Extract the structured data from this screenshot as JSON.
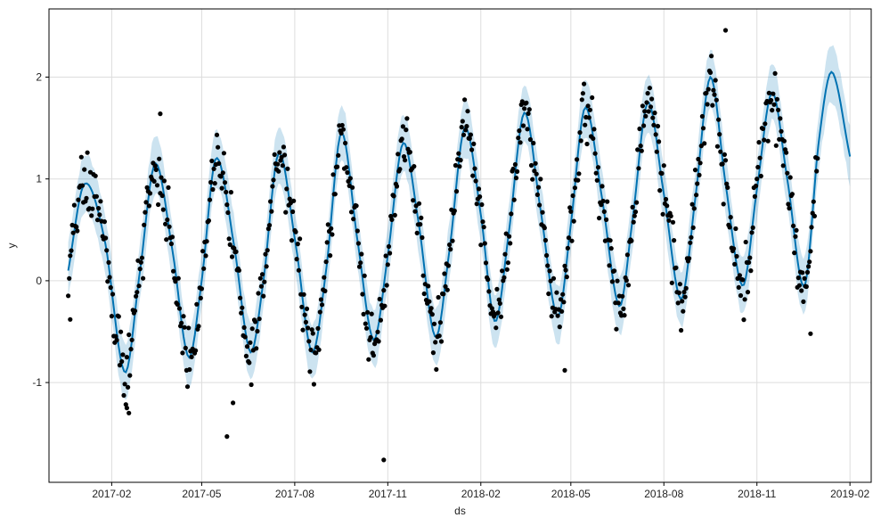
{
  "chart_data": {
    "type": "line",
    "title": "",
    "xlabel": "ds",
    "ylabel": "y",
    "x_tick_labels": [
      "2017-02",
      "2017-05",
      "2017-08",
      "2017-11",
      "2018-02",
      "2018-05",
      "2018-08",
      "2018-11",
      "2019-02"
    ],
    "x_tick_dates": [
      "2017-02-01",
      "2017-05-01",
      "2017-08-01",
      "2017-11-01",
      "2018-02-01",
      "2018-05-01",
      "2018-08-01",
      "2018-11-01",
      "2019-02-01"
    ],
    "y_ticks": [
      -1,
      0,
      1,
      2
    ],
    "xlim": [
      "2016-12-01",
      "2019-02-22"
    ],
    "ylim": [
      -1.98,
      2.67
    ],
    "grid": true,
    "colors": {
      "forecast_line": "#0072B2",
      "uncertainty_band": "#0072B2",
      "observed_points": "#000000",
      "grid": "#dddddd"
    },
    "series": [
      {
        "kind": "forecast",
        "x": [
          "2016-12-20",
          "2017-01-05",
          "2017-01-25",
          "2017-02-14",
          "2017-03-01",
          "2017-03-16",
          "2017-04-02",
          "2017-04-18",
          "2017-05-01",
          "2017-05-15",
          "2017-06-02",
          "2017-06-18",
          "2017-07-01",
          "2017-07-16",
          "2017-08-02",
          "2017-08-18",
          "2017-09-01",
          "2017-09-16",
          "2017-10-02",
          "2017-10-18",
          "2017-11-01",
          "2017-11-16",
          "2017-12-01",
          "2017-12-18",
          "2018-01-01",
          "2018-01-16",
          "2018-02-01",
          "2018-02-15",
          "2018-03-01",
          "2018-03-16",
          "2018-04-01",
          "2018-04-18",
          "2018-05-01",
          "2018-05-15",
          "2018-06-01",
          "2018-06-18",
          "2018-07-01",
          "2018-07-16",
          "2018-08-01",
          "2018-08-18",
          "2018-09-01",
          "2018-09-16",
          "2018-10-01",
          "2018-10-18",
          "2018-11-01",
          "2018-11-16",
          "2018-12-01",
          "2018-12-18",
          "2019-01-01",
          "2019-01-14",
          "2019-02-01"
        ],
        "y": [
          0.1,
          0.95,
          0.4,
          -0.9,
          0.1,
          1.15,
          0.3,
          -0.75,
          0.0,
          1.2,
          0.35,
          -0.7,
          0.0,
          1.25,
          0.35,
          -0.7,
          0.1,
          1.45,
          0.4,
          -0.58,
          0.25,
          1.35,
          0.6,
          -0.55,
          0.3,
          1.5,
          0.65,
          -0.4,
          0.5,
          1.65,
          0.7,
          -0.35,
          0.55,
          1.7,
          0.8,
          -0.25,
          0.6,
          1.75,
          0.85,
          -0.18,
          0.8,
          2.0,
          0.95,
          -0.05,
          0.9,
          1.85,
          1.0,
          -0.05,
          1.35,
          2.05,
          1.22
        ]
      },
      {
        "kind": "uncertainty_interval",
        "band_width": 0.28
      },
      {
        "kind": "observed",
        "noise": 0.2,
        "outliers": [
          {
            "x": "2016-12-22",
            "y": -0.38
          },
          {
            "x": "2017-02-16",
            "y": -1.25
          },
          {
            "x": "2017-02-18",
            "y": -1.3
          },
          {
            "x": "2017-03-21",
            "y": 1.64
          },
          {
            "x": "2017-05-26",
            "y": -1.53
          },
          {
            "x": "2017-06-01",
            "y": -1.2
          },
          {
            "x": "2017-10-28",
            "y": -1.76
          },
          {
            "x": "2018-04-25",
            "y": -0.88
          },
          {
            "x": "2018-10-01",
            "y": 2.46
          },
          {
            "x": "2018-12-24",
            "y": -0.52
          }
        ]
      }
    ]
  }
}
